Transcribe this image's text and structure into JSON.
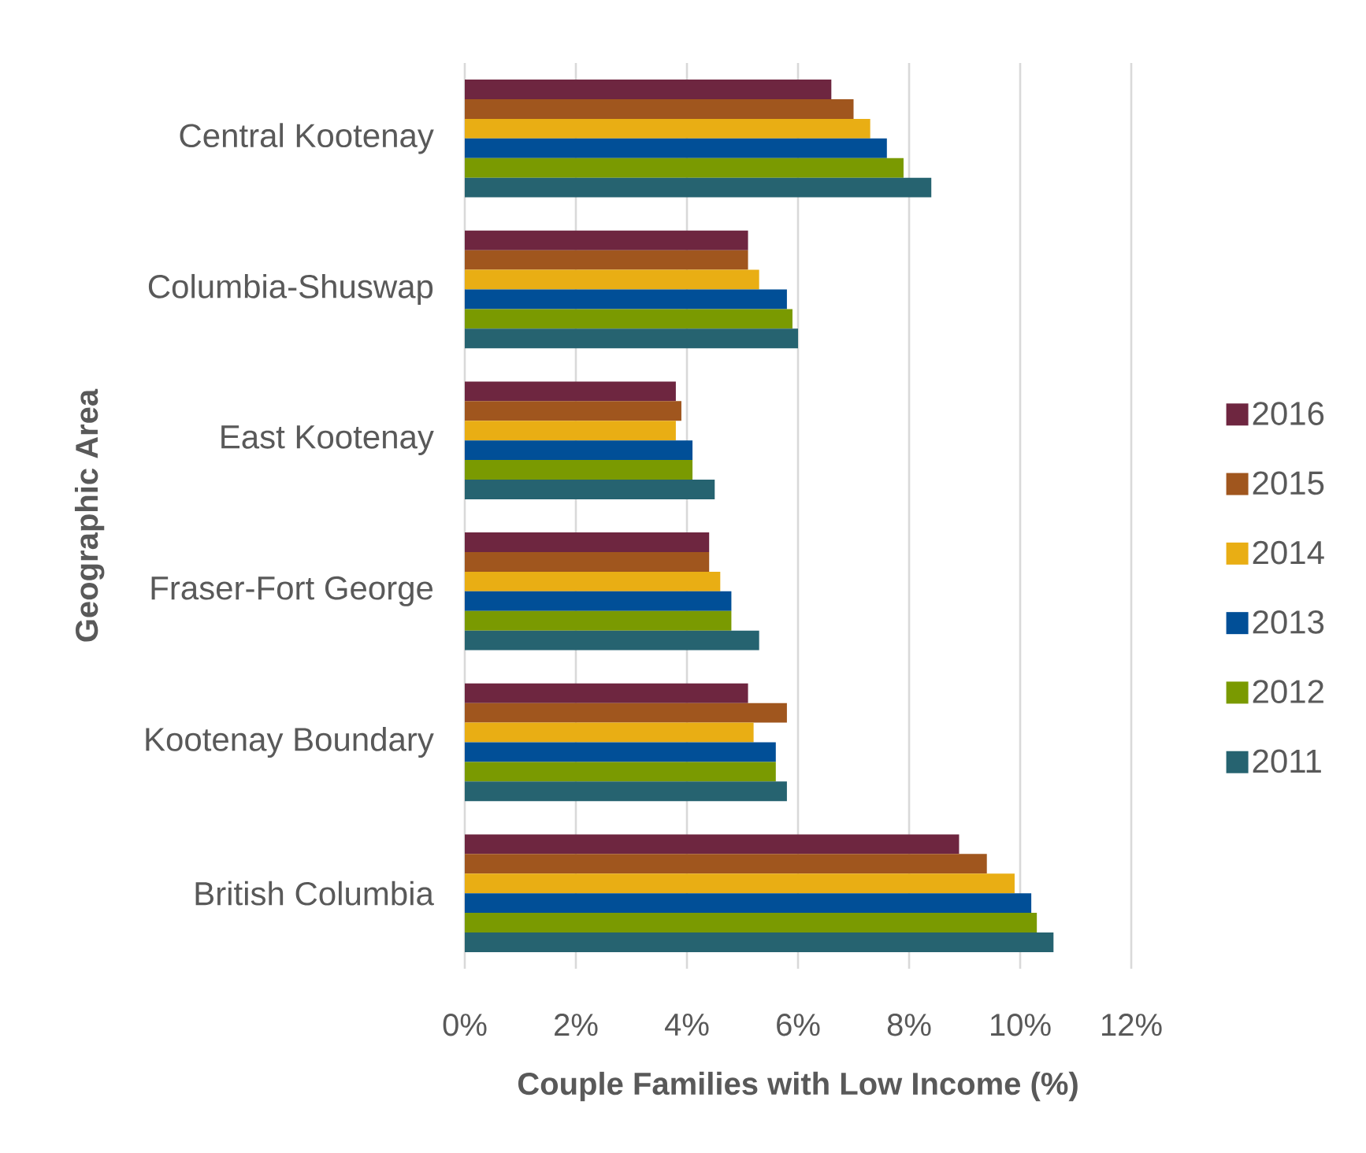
{
  "chart_data": {
    "type": "bar",
    "orientation": "horizontal",
    "categories": [
      "Central Kootenay",
      "Columbia-Shuswap",
      "East Kootenay",
      "Fraser-Fort George",
      "Kootenay Boundary",
      "British Columbia"
    ],
    "series": [
      {
        "name": "2016",
        "color": "#6e2640",
        "values": [
          6.6,
          5.1,
          3.8,
          4.4,
          5.1,
          8.9
        ]
      },
      {
        "name": "2015",
        "color": "#a0561e",
        "values": [
          7.0,
          5.1,
          3.9,
          4.4,
          5.8,
          9.4
        ]
      },
      {
        "name": "2014",
        "color": "#e9ae14",
        "values": [
          7.3,
          5.3,
          3.8,
          4.6,
          5.2,
          9.9
        ]
      },
      {
        "name": "2013",
        "color": "#014f97",
        "values": [
          7.6,
          5.8,
          4.1,
          4.8,
          5.6,
          10.2
        ]
      },
      {
        "name": "2012",
        "color": "#7a9a01",
        "values": [
          7.9,
          5.9,
          4.1,
          4.8,
          5.6,
          10.3
        ]
      },
      {
        "name": "2011",
        "color": "#266370",
        "values": [
          8.4,
          6.0,
          4.5,
          5.3,
          5.8,
          10.6
        ]
      }
    ],
    "xlim": [
      0,
      12
    ],
    "xticks": [
      {
        "value": 0,
        "label": "0%"
      },
      {
        "value": 2,
        "label": "2%"
      },
      {
        "value": 4,
        "label": "4%"
      },
      {
        "value": 6,
        "label": "6%"
      },
      {
        "value": 8,
        "label": "8%"
      },
      {
        "value": 10,
        "label": "10%"
      },
      {
        "value": 12,
        "label": "12%"
      }
    ],
    "xlabel": "Couple Families with Low Income (%)",
    "ylabel": "Geographic Area",
    "grid": "x",
    "legend": "right"
  }
}
